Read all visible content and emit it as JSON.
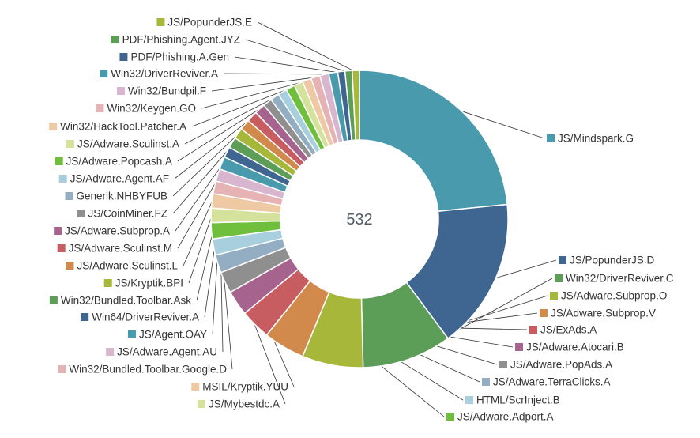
{
  "chart_data": {
    "type": "pie",
    "variant": "donut",
    "center_label": "532",
    "slices": [
      {
        "label": "JS/Mindspark.G",
        "value": 120,
        "color": "#4a9aae"
      },
      {
        "label": "JS/PopunderJS.D",
        "value": 84,
        "color": "#3f6690"
      },
      {
        "label": "Win32/DriverReviver.C",
        "value": 50,
        "color": "#5c9e58"
      },
      {
        "label": "JS/Adware.Subprop.O",
        "value": 34,
        "color": "#a6b73a"
      },
      {
        "label": "JS/Adware.Subprop.V",
        "value": 23,
        "color": "#d2894c"
      },
      {
        "label": "JS/ExAds.A",
        "value": 17,
        "color": "#c75d61"
      },
      {
        "label": "JS/Adware.Atocari.B",
        "value": 14,
        "color": "#a5638e"
      },
      {
        "label": "JS/Adware.PopAds.A",
        "value": 12,
        "color": "#8f8f8f"
      },
      {
        "label": "JS/Adware.TerraClicks.A",
        "value": 10,
        "color": "#93aec3"
      },
      {
        "label": "HTML/ScrInject.B",
        "value": 9,
        "color": "#a8cfdd"
      },
      {
        "label": "JS/Adware.Adport.A",
        "value": 9,
        "color": "#6fbf3c"
      },
      {
        "label": "JS/Mybestdc.A",
        "value": 8,
        "color": "#d5e29b"
      },
      {
        "label": "MSIL/Kryptik.YUU",
        "value": 8,
        "color": "#eec9a3"
      },
      {
        "label": "Win32/Bundled.Toolbar.Google.D",
        "value": 7,
        "color": "#e6b3b4"
      },
      {
        "label": "JS/Adware.Agent.AU",
        "value": 7,
        "color": "#d8b6cf"
      },
      {
        "label": "JS/Agent.OAY",
        "value": 7,
        "color": "#4a9aae"
      },
      {
        "label": "Win64/DriverReviver.A",
        "value": 6,
        "color": "#3f6690"
      },
      {
        "label": "Win32/Bundled.Toolbar.Ask",
        "value": 6,
        "color": "#5c9e58"
      },
      {
        "label": "JS/Kryptik.BPI",
        "value": 6,
        "color": "#a6b73a"
      },
      {
        "label": "JS/Adware.Sculinst.L",
        "value": 6,
        "color": "#d2894c"
      },
      {
        "label": "JS/Adware.Sculinst.M",
        "value": 6,
        "color": "#c75d61"
      },
      {
        "label": "JS/Adware.Subprop.A",
        "value": 6,
        "color": "#a5638e"
      },
      {
        "label": "JS/CoinMiner.FZ",
        "value": 5,
        "color": "#8f8f8f"
      },
      {
        "label": "Generik.NHBYFUB",
        "value": 5,
        "color": "#93aec3"
      },
      {
        "label": "JS/Adware.Agent.AF",
        "value": 5,
        "color": "#a8cfdd"
      },
      {
        "label": "JS/Adware.Popcash.A",
        "value": 5,
        "color": "#6fbf3c"
      },
      {
        "label": "JS/Adware.Sculinst.A",
        "value": 5,
        "color": "#d5e29b"
      },
      {
        "label": "Win32/HackTool.Patcher.A",
        "value": 5,
        "color": "#eec9a3"
      },
      {
        "label": "Win32/Keygen.GO",
        "value": 5,
        "color": "#e6b3b4"
      },
      {
        "label": "Win32/Bundpil.F",
        "value": 5,
        "color": "#d8b6cf"
      },
      {
        "label": "Win32/DriverReviver.A",
        "value": 5,
        "color": "#4a9aae"
      },
      {
        "label": "PDF/Phishing.A.Gen",
        "value": 4,
        "color": "#3f6690"
      },
      {
        "label": "PDF/Phishing.Agent.JYZ",
        "value": 4,
        "color": "#5c9e58"
      },
      {
        "label": "JS/PopunderJS.E",
        "value": 4,
        "color": "#a6b73a"
      }
    ]
  }
}
